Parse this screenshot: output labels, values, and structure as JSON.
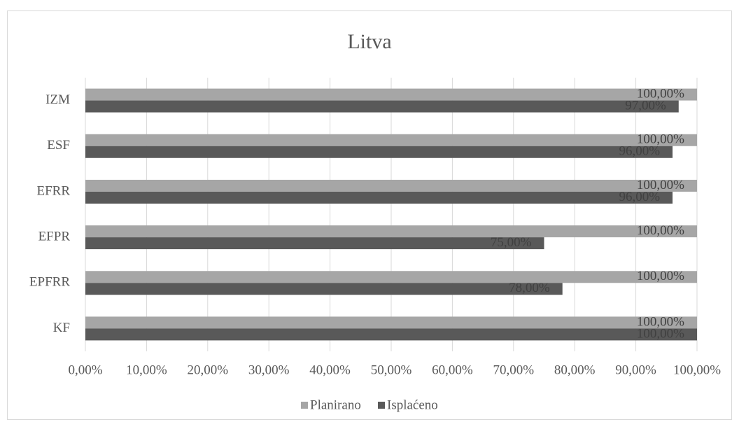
{
  "chart_data": {
    "type": "bar",
    "orientation": "horizontal",
    "title": "Litva",
    "categories": [
      "IZM",
      "ESF",
      "EFRR",
      "EFPR",
      "EPFRR",
      "KF"
    ],
    "series": [
      {
        "name": "Planirano",
        "color": "#a6a6a6",
        "values": [
          100,
          100,
          100,
          100,
          100,
          100
        ],
        "value_labels": [
          "100,00%",
          "100,00%",
          "100,00%",
          "100,00%",
          "100,00%",
          "100,00%"
        ]
      },
      {
        "name": "Isplaćeno",
        "color": "#595959",
        "values": [
          97,
          96,
          96,
          75,
          78,
          100
        ],
        "value_labels": [
          "97,00%",
          "96,00%",
          "96,00%",
          "75,00%",
          "78,00%",
          "100,00%"
        ]
      }
    ],
    "xlim": [
      0,
      100
    ],
    "xticks": [
      {
        "value": 0,
        "label": "0,00%"
      },
      {
        "value": 10,
        "label": "10,00%"
      },
      {
        "value": 20,
        "label": "20,00%"
      },
      {
        "value": 30,
        "label": "30,00%"
      },
      {
        "value": 40,
        "label": "40,00%"
      },
      {
        "value": 50,
        "label": "50,00%"
      },
      {
        "value": 60,
        "label": "60,00%"
      },
      {
        "value": 70,
        "label": "70,00%"
      },
      {
        "value": 80,
        "label": "80,00%"
      },
      {
        "value": 90,
        "label": "90,00%"
      },
      {
        "value": 100,
        "label": "100,00%"
      }
    ],
    "grid": true,
    "legend": "bottom"
  }
}
